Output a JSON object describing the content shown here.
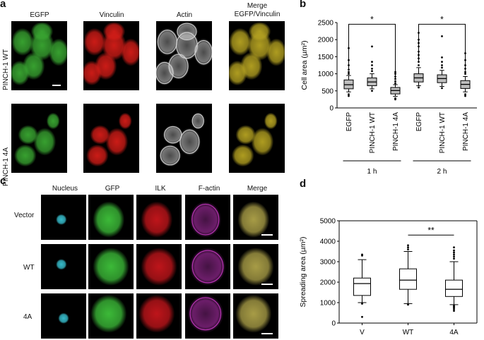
{
  "panels": {
    "a": {
      "letter": "a",
      "columns": [
        "EGFP",
        "Vinculin",
        "Actin"
      ],
      "merge_line1": "Merge",
      "merge_line2": "EGFP/Vinculin",
      "rows": [
        "PINCH-1 WT",
        "PINCH-1 4A"
      ],
      "colors": {
        "green": "#3aa832",
        "red": "#d51d18",
        "white": "#d8d8d8",
        "merge": "#b7a422"
      }
    },
    "b": {
      "letter": "b",
      "ylabel": "Cell area (µm²)",
      "groups": [
        "1 h",
        "2 h"
      ],
      "significance": [
        "*",
        "*"
      ]
    },
    "c": {
      "letter": "c",
      "columns": [
        "Nucleus",
        "GFP",
        "ILK",
        "F-actin",
        "Merge"
      ],
      "rows": [
        "Vector",
        "WT",
        "4A"
      ],
      "colors": {
        "cyan": "#39c4d4",
        "green": "#3fc33b",
        "red": "#c8161c",
        "magenta": "#c436c0",
        "merge": "#b0a44a"
      }
    },
    "d": {
      "letter": "d",
      "ylabel": "Spreading area (µm²)",
      "significance": "**"
    }
  },
  "chart_data": [
    {
      "type": "box",
      "panel": "b",
      "ylabel": "Cell area (µm²)",
      "ylim": [
        0,
        2500
      ],
      "yticks": [
        0,
        500,
        1000,
        1500,
        2000,
        2500
      ],
      "categories": [
        "EGFP",
        "PINCH-1 WT",
        "PINCH-1 4A",
        "EGFP",
        "PINCH-1 WT",
        "PINCH-1 4A"
      ],
      "group_labels": [
        "1 h",
        "2 h"
      ],
      "boxes": [
        {
          "q1": 560,
          "median": 680,
          "q3": 820,
          "low": 470,
          "high": 950,
          "outliers": [
            1000,
            1050,
            1120,
            1250,
            1400,
            1750,
            400,
            350
          ]
        },
        {
          "q1": 650,
          "median": 760,
          "q3": 880,
          "low": 560,
          "high": 1000,
          "outliers": [
            1080,
            1150,
            1250,
            1350,
            1800,
            500
          ]
        },
        {
          "q1": 410,
          "median": 510,
          "q3": 600,
          "low": 340,
          "high": 680,
          "outliers": [
            720,
            780,
            850,
            920,
            1000,
            1050,
            280,
            250
          ]
        },
        {
          "q1": 760,
          "median": 880,
          "q3": 1000,
          "low": 650,
          "high": 1180,
          "outliers": [
            1250,
            1350,
            1450,
            1550,
            1650,
            1800,
            1900,
            2000,
            2200,
            600
          ]
        },
        {
          "q1": 740,
          "median": 860,
          "q3": 970,
          "low": 630,
          "high": 1100,
          "outliers": [
            1180,
            1250,
            1350,
            1480,
            2100,
            580
          ]
        },
        {
          "q1": 570,
          "median": 690,
          "q3": 800,
          "low": 470,
          "high": 920,
          "outliers": [
            1000,
            1050,
            1150,
            1250,
            1400,
            1600,
            400,
            350
          ]
        }
      ],
      "significance": [
        {
          "from": 0,
          "to": 2,
          "label": "*",
          "y": 2450
        },
        {
          "from": 3,
          "to": 5,
          "label": "*",
          "y": 2450
        }
      ]
    },
    {
      "type": "box",
      "panel": "d",
      "ylabel": "Spreading area (µm²)",
      "ylim": [
        0,
        5000
      ],
      "yticks": [
        0,
        1000,
        2000,
        3000,
        4000,
        5000
      ],
      "categories": [
        "V",
        "WT",
        "4A"
      ],
      "boxes": [
        {
          "q1": 1350,
          "median": 1930,
          "q3": 2200,
          "low": 1000,
          "high": 3100,
          "outliers": [
            3300,
            3350,
            950,
            300
          ]
        },
        {
          "q1": 1650,
          "median": 2100,
          "q3": 2650,
          "low": 950,
          "high": 3500,
          "outliers": [
            3600,
            3700,
            3800,
            900
          ]
        },
        {
          "q1": 1300,
          "median": 1650,
          "q3": 2100,
          "low": 900,
          "high": 3000,
          "outliers": [
            3150,
            3250,
            3350,
            3450,
            3550,
            3700,
            850,
            800,
            750,
            680,
            600
          ]
        }
      ],
      "significance": [
        {
          "from": 1,
          "to": 2,
          "label": "**",
          "y": 4300
        }
      ]
    }
  ]
}
